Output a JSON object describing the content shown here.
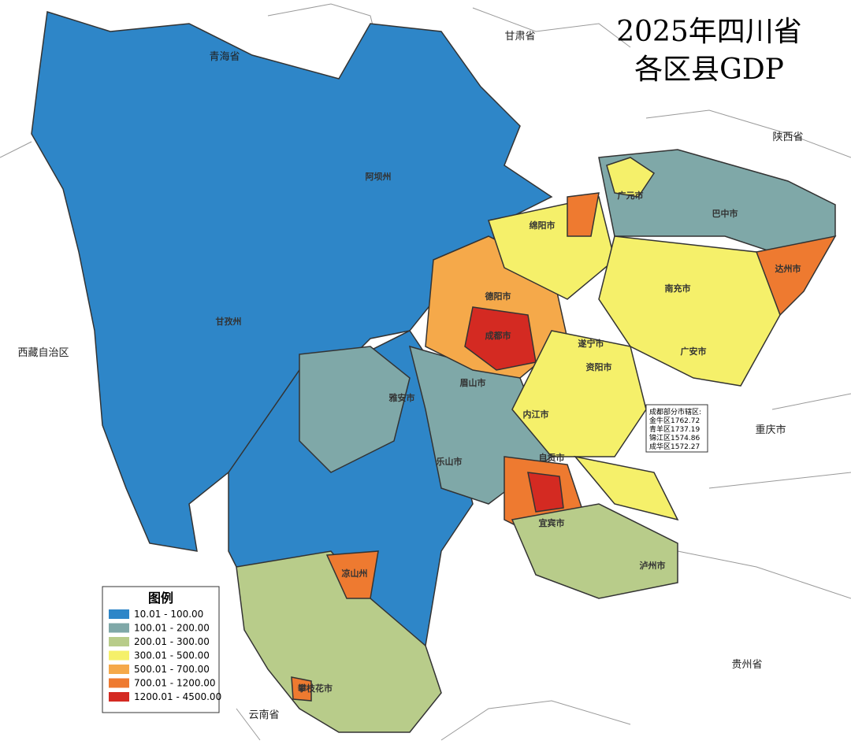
{
  "title": [
    "2025年四川省",
    "各区县GDP"
  ],
  "neighbors": [
    "青海省",
    "甘肃省",
    "陕西省",
    "西藏自治区",
    "重庆市",
    "贵州省",
    "云南省"
  ],
  "legend": {
    "title": "图例",
    "items": [
      {
        "label": "10.01 - 100.00",
        "color": "#2e86c8"
      },
      {
        "label": "100.01 - 200.00",
        "color": "#7fa8a8"
      },
      {
        "label": "200.01 - 300.00",
        "color": "#b8cc8a"
      },
      {
        "label": "300.01 - 500.00",
        "color": "#f5f06a"
      },
      {
        "label": "500.01 - 700.00",
        "color": "#f5a94a"
      },
      {
        "label": "700.01 - 1200.00",
        "color": "#ee7a30"
      },
      {
        "label": "1200.01 - 4500.00",
        "color": "#d42a22"
      }
    ]
  },
  "inset": [
    "成都部分市辖区:",
    "金牛区1762.72",
    "青羊区1737.19",
    "锦江区1574.86",
    "成华区1572.27"
  ],
  "prefectures": [
    "阿坝州",
    "甘孜州",
    "凉山州",
    "雅安市",
    "成都市",
    "德阳市",
    "绵阳市",
    "广元市",
    "巴中市",
    "达州市",
    "南充市",
    "广安市",
    "遂宁市",
    "资阳市",
    "眉山市",
    "乐山市",
    "内江市",
    "自贡市",
    "宜宾市",
    "泸州市",
    "攀枝花市"
  ]
}
